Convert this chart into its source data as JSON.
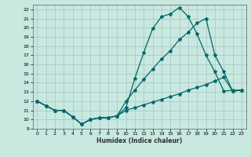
{
  "xlabel": "Humidex (Indice chaleur)",
  "bg_color": "#c8e8e0",
  "grid_color": "#a8ccc8",
  "line_color": "#006868",
  "xlim": [
    -0.5,
    23.5
  ],
  "ylim": [
    9,
    22.5
  ],
  "xticks": [
    0,
    1,
    2,
    3,
    4,
    5,
    6,
    7,
    8,
    9,
    10,
    11,
    12,
    13,
    14,
    15,
    16,
    17,
    18,
    19,
    20,
    21,
    22,
    23
  ],
  "yticks": [
    9,
    10,
    11,
    12,
    13,
    14,
    15,
    16,
    17,
    18,
    19,
    20,
    21,
    22
  ],
  "curve1_y": [
    12.0,
    11.5,
    11.0,
    11.0,
    10.3,
    9.5,
    10.0,
    10.2,
    10.2,
    10.4,
    11.3,
    14.5,
    17.3,
    19.9,
    21.2,
    21.5,
    22.2,
    21.2,
    19.3,
    17.0,
    15.2,
    13.1,
    13.2,
    13.2
  ],
  "curve2_y": [
    12.0,
    11.5,
    11.0,
    11.0,
    10.3,
    9.5,
    10.0,
    10.2,
    10.2,
    10.4,
    12.0,
    13.2,
    14.4,
    15.5,
    16.6,
    17.5,
    18.7,
    19.5,
    20.5,
    21.0,
    17.0,
    15.2,
    13.1,
    13.2
  ],
  "curve3_y": [
    12.0,
    11.5,
    11.0,
    11.0,
    10.3,
    9.5,
    10.0,
    10.2,
    10.2,
    10.4,
    11.0,
    11.3,
    11.6,
    11.9,
    12.2,
    12.5,
    12.8,
    13.2,
    13.5,
    13.8,
    14.2,
    14.6,
    13.1,
    13.2
  ]
}
